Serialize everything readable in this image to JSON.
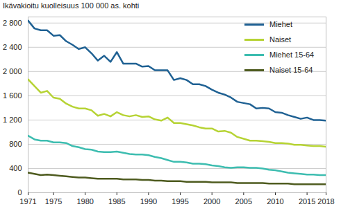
{
  "chart_data": {
    "type": "line",
    "subtitle": "Ikävakioitu kuolleisuus 100 000 as. kohti",
    "x": [
      1971,
      1972,
      1973,
      1974,
      1975,
      1976,
      1977,
      1978,
      1979,
      1980,
      1981,
      1982,
      1983,
      1984,
      1985,
      1986,
      1987,
      1988,
      1989,
      1990,
      1991,
      1992,
      1993,
      1994,
      1995,
      1996,
      1997,
      1998,
      1999,
      2000,
      2001,
      2002,
      2003,
      2004,
      2005,
      2006,
      2007,
      2008,
      2009,
      2010,
      2011,
      2012,
      2013,
      2014,
      2015,
      2016,
      2017,
      2018
    ],
    "series": [
      {
        "name": "Miehet",
        "color": "#1f6193",
        "values": [
          2840,
          2710,
          2680,
          2680,
          2590,
          2600,
          2500,
          2440,
          2370,
          2400,
          2300,
          2180,
          2260,
          2160,
          2320,
          2130,
          2130,
          2130,
          2080,
          2090,
          2020,
          2020,
          2020,
          1860,
          1890,
          1860,
          1790,
          1790,
          1760,
          1700,
          1650,
          1620,
          1570,
          1500,
          1480,
          1460,
          1390,
          1400,
          1390,
          1330,
          1320,
          1280,
          1250,
          1220,
          1240,
          1200,
          1200,
          1190
        ]
      },
      {
        "name": "Naiset",
        "color": "#b6d334",
        "values": [
          1870,
          1760,
          1650,
          1680,
          1570,
          1550,
          1470,
          1420,
          1390,
          1390,
          1360,
          1270,
          1300,
          1260,
          1330,
          1280,
          1260,
          1280,
          1250,
          1260,
          1210,
          1190,
          1240,
          1150,
          1150,
          1130,
          1110,
          1080,
          1060,
          1060,
          1010,
          1020,
          990,
          920,
          890,
          860,
          860,
          850,
          840,
          820,
          820,
          810,
          790,
          790,
          780,
          770,
          770,
          760
        ]
      },
      {
        "name": "Miehet 15-64",
        "color": "#3dbdb0",
        "values": [
          940,
          880,
          860,
          860,
          830,
          830,
          820,
          770,
          750,
          720,
          710,
          680,
          670,
          670,
          680,
          660,
          640,
          630,
          630,
          620,
          590,
          570,
          540,
          510,
          510,
          500,
          480,
          480,
          470,
          450,
          440,
          420,
          410,
          420,
          420,
          410,
          410,
          400,
          380,
          370,
          350,
          330,
          320,
          310,
          300,
          300,
          290,
          290
        ]
      },
      {
        "name": "Naiset 15-64",
        "color": "#4e5b1f",
        "values": [
          330,
          310,
          290,
          300,
          290,
          280,
          270,
          260,
          250,
          250,
          240,
          230,
          230,
          230,
          230,
          220,
          220,
          220,
          210,
          210,
          200,
          200,
          190,
          190,
          190,
          180,
          180,
          180,
          180,
          170,
          170,
          170,
          170,
          160,
          160,
          160,
          160,
          160,
          150,
          150,
          150,
          150,
          140,
          140,
          140,
          140,
          140,
          140
        ]
      }
    ],
    "xlim": [
      1971,
      2018
    ],
    "xticks": [
      1971,
      1975,
      1980,
      1985,
      1990,
      1995,
      2000,
      2005,
      2010,
      2015,
      2018
    ],
    "ylim": [
      0,
      2900
    ],
    "yticks": [
      0,
      400,
      800,
      {
        "value": 1200,
        "label": "1 200"
      },
      {
        "value": 1600,
        "label": "1 600"
      },
      {
        "value": 2000,
        "label": "2 000"
      },
      {
        "value": 2400,
        "label": "2 400"
      },
      {
        "value": 2800,
        "label": "2 800"
      }
    ],
    "grid": true,
    "legend": "top-right"
  }
}
